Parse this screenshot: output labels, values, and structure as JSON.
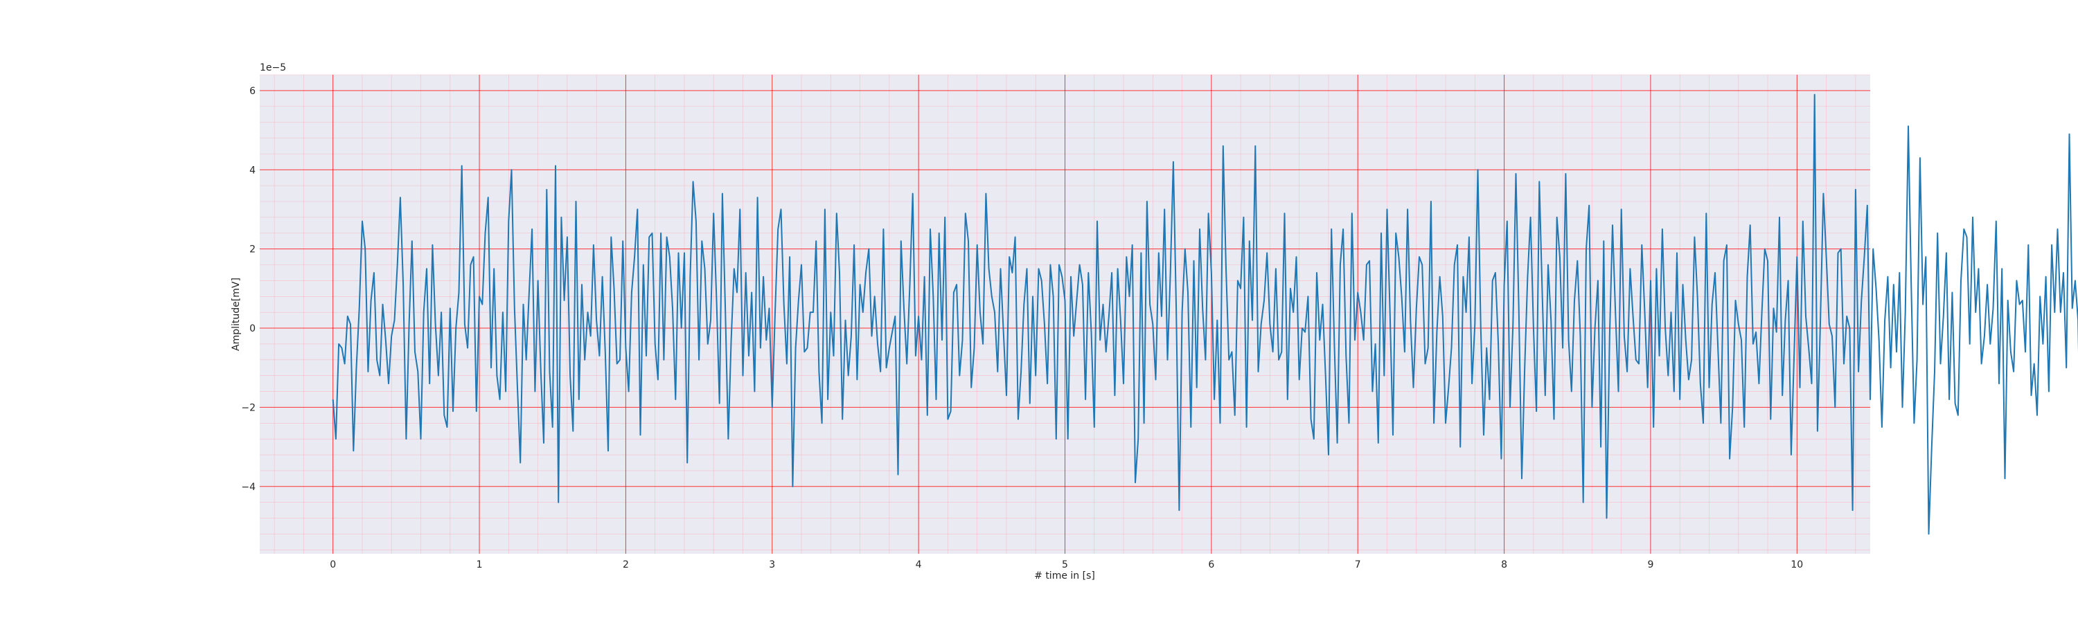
{
  "chart_data": {
    "type": "line",
    "xlabel": "# time in [s]",
    "ylabel": "Amplitude[mV]",
    "y_scale_label": "1e−5",
    "xlim": [
      -0.5,
      10.5
    ],
    "ylim": [
      -5.7,
      6.4
    ],
    "x_ticks": [
      0,
      1,
      2,
      3,
      4,
      5,
      6,
      7,
      8,
      9,
      10
    ],
    "y_ticks": [
      -4,
      -2,
      0,
      2,
      4,
      6
    ],
    "x_tick_labels": [
      "0",
      "1",
      "2",
      "3",
      "4",
      "5",
      "6",
      "7",
      "8",
      "9",
      "10"
    ],
    "y_tick_labels": [
      "−4",
      "−2",
      "0",
      "2",
      "4",
      "6"
    ],
    "grid": true,
    "minor_grid": true,
    "background": "#eaeaf2",
    "grid_color": "#ff0000",
    "series": [
      {
        "color": "#1f77b4",
        "x_start": 0,
        "x_step": 0.02,
        "values": [
          -1.8,
          -2.8,
          -0.4,
          -0.5,
          -0.9,
          0.3,
          0.1,
          -3.1,
          -1.0,
          0.5,
          2.7,
          2.0,
          -1.1,
          0.7,
          1.4,
          -0.8,
          -1.2,
          0.6,
          -0.3,
          -1.4,
          -0.2,
          0.2,
          1.6,
          3.3,
          1.1,
          -2.8,
          0.1,
          2.2,
          -0.6,
          -1.1,
          -2.8,
          0.4,
          1.5,
          -1.4,
          2.1,
          0.1,
          -1.2,
          0.4,
          -2.2,
          -2.5,
          0.5,
          -2.1,
          0.0,
          0.9,
          4.1,
          0.1,
          -0.5,
          1.6,
          1.8,
          -2.1,
          0.8,
          0.6,
          2.4,
          3.3,
          -1.0,
          1.5,
          -1.2,
          -1.8,
          0.4,
          -1.6,
          2.7,
          4.0,
          0.5,
          -1.5,
          -3.4,
          0.6,
          -0.8,
          0.9,
          2.5,
          -1.6,
          1.2,
          -1.1,
          -2.9,
          3.5,
          -1.1,
          -2.5,
          4.1,
          -4.4,
          2.8,
          0.7,
          2.3,
          -1.2,
          -2.6,
          3.2,
          -1.8,
          1.1,
          -0.8,
          0.4,
          -0.2,
          2.1,
          0.2,
          -0.7,
          1.3,
          -0.6,
          -3.1,
          2.3,
          1.0,
          -0.9,
          -0.8,
          2.2,
          -0.5,
          -1.6,
          0.9,
          1.8,
          3.0,
          -2.7,
          1.6,
          -0.7,
          2.3,
          2.4,
          -0.4,
          -1.3,
          2.4,
          -0.8,
          2.3,
          1.8,
          0.5,
          -1.8,
          1.9,
          0.0,
          1.9,
          -3.4,
          1.3,
          3.7,
          2.7,
          -0.8,
          2.2,
          1.5,
          -0.4,
          0.2,
          2.9,
          0.7,
          -1.9,
          3.4,
          0.5,
          -2.8,
          -0.3,
          1.5,
          0.9,
          3.0,
          -1.2,
          1.4,
          -0.7,
          0.9,
          -1.6,
          3.3,
          -0.5,
          1.3,
          -0.3,
          0.5,
          -2.0,
          0.4,
          2.5,
          3.0,
          0.6,
          -0.9,
          1.8,
          -4.0,
          -0.5,
          0.7,
          1.6,
          -0.6,
          -0.5,
          0.4,
          0.4,
          2.2,
          -1.1,
          -2.4,
          3.0,
          -1.8,
          0.4,
          -0.7,
          2.9,
          1.4,
          -2.3,
          0.2,
          -1.2,
          -0.2,
          2.1,
          -1.3,
          1.1,
          0.4,
          1.4,
          2.0,
          -0.2,
          0.8,
          -0.4,
          -1.1,
          2.5,
          -1.0,
          -0.5,
          -0.1,
          0.3,
          -3.7,
          2.2,
          0.5,
          -0.9,
          1.1,
          3.4,
          -0.7,
          0.3,
          -0.8,
          1.3,
          -2.2,
          2.5,
          0.8,
          -1.8,
          2.4,
          -0.3,
          2.8,
          -2.3,
          -2.1,
          0.9,
          1.1,
          -1.2,
          -0.3,
          2.9,
          2.2,
          -1.5,
          -0.5,
          2.1,
          0.4,
          -0.4,
          3.4,
          1.5,
          0.8,
          0.4,
          -1.1,
          1.5,
          -0.1,
          -1.7,
          1.8,
          1.4,
          2.3,
          -2.3,
          -1.1,
          0.6,
          1.5,
          -1.9,
          0.8,
          -1.2,
          1.5,
          1.2,
          0.1,
          -1.4,
          1.6,
          0.8,
          -2.8,
          1.6,
          1.3,
          0.7,
          -2.8,
          1.3,
          -0.2,
          0.7,
          1.6,
          1.1,
          -1.8,
          1.4,
          -0.1,
          -2.5,
          2.7,
          -0.3,
          0.6,
          -0.6,
          0.3,
          1.4,
          -1.7,
          1.5,
          0.2,
          -1.4,
          1.8,
          0.8,
          2.1,
          -3.9,
          -2.8,
          1.9,
          -2.4,
          3.2,
          0.6,
          0.1,
          -1.3,
          1.9,
          0.3,
          3.0,
          -0.8,
          1.4,
          4.2,
          0.5,
          -4.6,
          0.4,
          2.0,
          0.9,
          -2.5,
          1.7,
          -1.5,
          2.5,
          0.5,
          -0.8,
          2.9,
          1.4,
          -1.8,
          0.2,
          -2.4,
          4.6,
          1.5,
          -0.8,
          -0.6,
          -2.2,
          1.2,
          1.0,
          2.8,
          -2.5,
          2.2,
          0.2,
          4.6,
          -1.1,
          0.1,
          0.7,
          1.9,
          0.1,
          -0.6,
          1.5,
          -0.8,
          -0.6,
          2.9,
          -1.8,
          1.0,
          0.4,
          1.8,
          -1.3,
          0.0,
          -0.1,
          0.8,
          -2.3,
          -2.8,
          1.4,
          -0.3,
          0.6,
          -1.2,
          -3.2,
          2.5,
          -0.4,
          -2.9,
          1.6,
          2.5,
          -0.7,
          -2.4,
          2.9,
          -0.3,
          0.9,
          0.4,
          -0.3,
          1.6,
          1.7,
          -1.6,
          -0.4,
          -2.9,
          2.4,
          -1.2,
          3.0,
          0.4,
          -2.7,
          2.4,
          1.8,
          0.8,
          -0.6,
          3.0,
          0.2,
          -1.5,
          0.5,
          1.8,
          1.6,
          -0.9,
          -0.5,
          3.2,
          -2.4,
          -0.1,
          1.3,
          0.3,
          -2.4,
          -1.5,
          -0.5,
          1.6,
          2.1,
          -3.0,
          1.3,
          0.4,
          2.3,
          -1.4,
          0.1,
          4.0,
          0.0,
          -2.7,
          -0.5,
          -1.8,
          1.2,
          1.4,
          -0.4,
          -3.3,
          1.1,
          2.7,
          -2.0,
          0.1,
          3.9,
          0.5,
          -3.8,
          -1.0,
          1.3,
          2.8,
          0.0,
          -2.1,
          3.7,
          0.9,
          -1.7,
          1.6,
          0.2,
          -2.3,
          2.8,
          1.8,
          -0.5,
          3.9,
          -0.3,
          -1.6,
          0.7,
          1.7,
          -0.2,
          -4.4,
          2.0,
          3.1,
          -2.0,
          0.0,
          1.2,
          -3.0,
          2.2,
          -4.8,
          -0.2,
          2.6,
          0.4,
          -1.6,
          3.0,
          -0.2,
          -1.1,
          1.5,
          0.3,
          -0.8,
          -0.9,
          2.1,
          0.4,
          -1.5,
          1.2,
          -2.5,
          1.5,
          -0.7,
          2.5,
          0.0,
          -1.2,
          0.4,
          -1.6,
          1.9,
          -1.8,
          1.1,
          -0.3,
          -1.3,
          -0.8,
          2.3,
          0.8,
          -1.4,
          -2.4,
          2.9,
          -1.5,
          0.6,
          1.4,
          -0.5,
          -2.4,
          1.7,
          2.1,
          -3.3,
          -2.0,
          0.7,
          0.1,
          -0.3,
          -2.5,
          1.3,
          2.6,
          -0.4,
          -0.1,
          -1.4,
          0.4,
          2.0,
          1.7,
          -2.3,
          0.5,
          -0.1,
          2.8,
          -1.7,
          0.2,
          1.2,
          -3.2,
          -0.7,
          1.8,
          -1.5,
          2.7,
          0.3,
          -0.5,
          -1.4,
          5.9,
          -2.6,
          0.2,
          3.4,
          1.8,
          0.1,
          -0.2,
          -2.0,
          1.9,
          2.0,
          -0.9,
          0.3,
          0.0,
          -4.6,
          3.5,
          -1.1,
          0.7,
          1.8,
          3.1,
          -1.8,
          2.0,
          1.0,
          -0.3,
          -2.5,
          0.2,
          1.3,
          -1.0,
          1.1,
          -0.6,
          1.4,
          -2.0,
          0.4,
          5.1,
          1.1,
          -2.4,
          -0.8,
          4.3,
          0.6,
          1.8,
          -5.2,
          -3.0,
          -1.1,
          2.4,
          -0.9,
          0.3,
          1.9,
          -1.8,
          0.9,
          -1.9,
          -2.2,
          1.2,
          2.5,
          2.3,
          -0.4,
          2.8,
          0.4,
          1.5,
          -0.9,
          -0.2,
          1.1,
          -0.4,
          0.5,
          2.7,
          -1.4,
          1.5,
          -3.8,
          0.7,
          -0.6,
          -1.1,
          1.2,
          0.6,
          0.7,
          -0.6,
          2.1,
          -1.7,
          -0.9,
          -2.2,
          0.8,
          -0.4,
          1.3,
          -1.6,
          2.1,
          0.4,
          2.5,
          0.4,
          1.4,
          -1.0,
          4.9,
          0.5,
          1.2,
          0.2,
          -3.7,
          1.1,
          -0.9,
          1.6,
          0.8
        ]
      }
    ]
  }
}
